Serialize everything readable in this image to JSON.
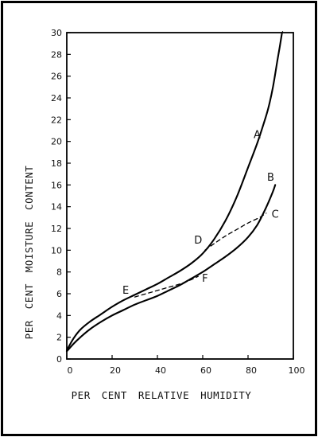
{
  "chart_data": {
    "type": "line",
    "xlabel": "PER CENT RELATIVE HUMIDITY",
    "ylabel": "PER CENT MOISTURE CONTENT",
    "xlim": [
      0,
      100
    ],
    "ylim": [
      0,
      30
    ],
    "xticks": [
      0,
      20,
      40,
      60,
      80,
      100
    ],
    "yticks": [
      0,
      2,
      4,
      6,
      8,
      10,
      12,
      14,
      16,
      18,
      20,
      22,
      24,
      26,
      28,
      30
    ],
    "grid": false,
    "series": [
      {
        "name": "A",
        "style": "solid",
        "x": [
          0,
          3,
          6,
          10,
          15,
          20,
          25,
          30,
          35,
          40,
          45,
          50,
          55,
          60,
          65,
          70,
          75,
          80,
          84,
          87,
          89,
          91,
          93,
          94,
          95
        ],
        "y": [
          0.8,
          1.9,
          2.7,
          3.4,
          4.1,
          4.8,
          5.4,
          5.9,
          6.4,
          6.9,
          7.5,
          8.1,
          8.8,
          9.7,
          11.0,
          12.7,
          14.9,
          17.6,
          19.8,
          21.7,
          23.1,
          25.0,
          27.5,
          28.7,
          30.0
        ]
      },
      {
        "name": "B",
        "style": "solid",
        "x": [
          0,
          3,
          6,
          10,
          15,
          20,
          25,
          30,
          35,
          40,
          45,
          50,
          55,
          60,
          65,
          70,
          75,
          80,
          84,
          87,
          89,
          91,
          92
        ],
        "y": [
          0.7,
          1.4,
          2.0,
          2.7,
          3.4,
          4.0,
          4.5,
          5.0,
          5.4,
          5.8,
          6.3,
          6.8,
          7.4,
          8.0,
          8.7,
          9.4,
          10.2,
          11.2,
          12.3,
          13.5,
          14.4,
          15.4,
          16.0
        ]
      },
      {
        "name": "C",
        "style": "dashed",
        "x": [
          61,
          65,
          70,
          75,
          80,
          85,
          88
        ],
        "y": [
          10.0,
          10.6,
          11.3,
          11.9,
          12.5,
          13.0,
          13.4
        ]
      },
      {
        "name": "E",
        "style": "dashed",
        "x": [
          30,
          35,
          40,
          45,
          50,
          55,
          58
        ],
        "y": [
          5.7,
          6.0,
          6.3,
          6.6,
          6.9,
          7.3,
          7.6
        ]
      }
    ],
    "point_labels": [
      "A",
      "B",
      "C",
      "D",
      "E",
      "F"
    ]
  }
}
